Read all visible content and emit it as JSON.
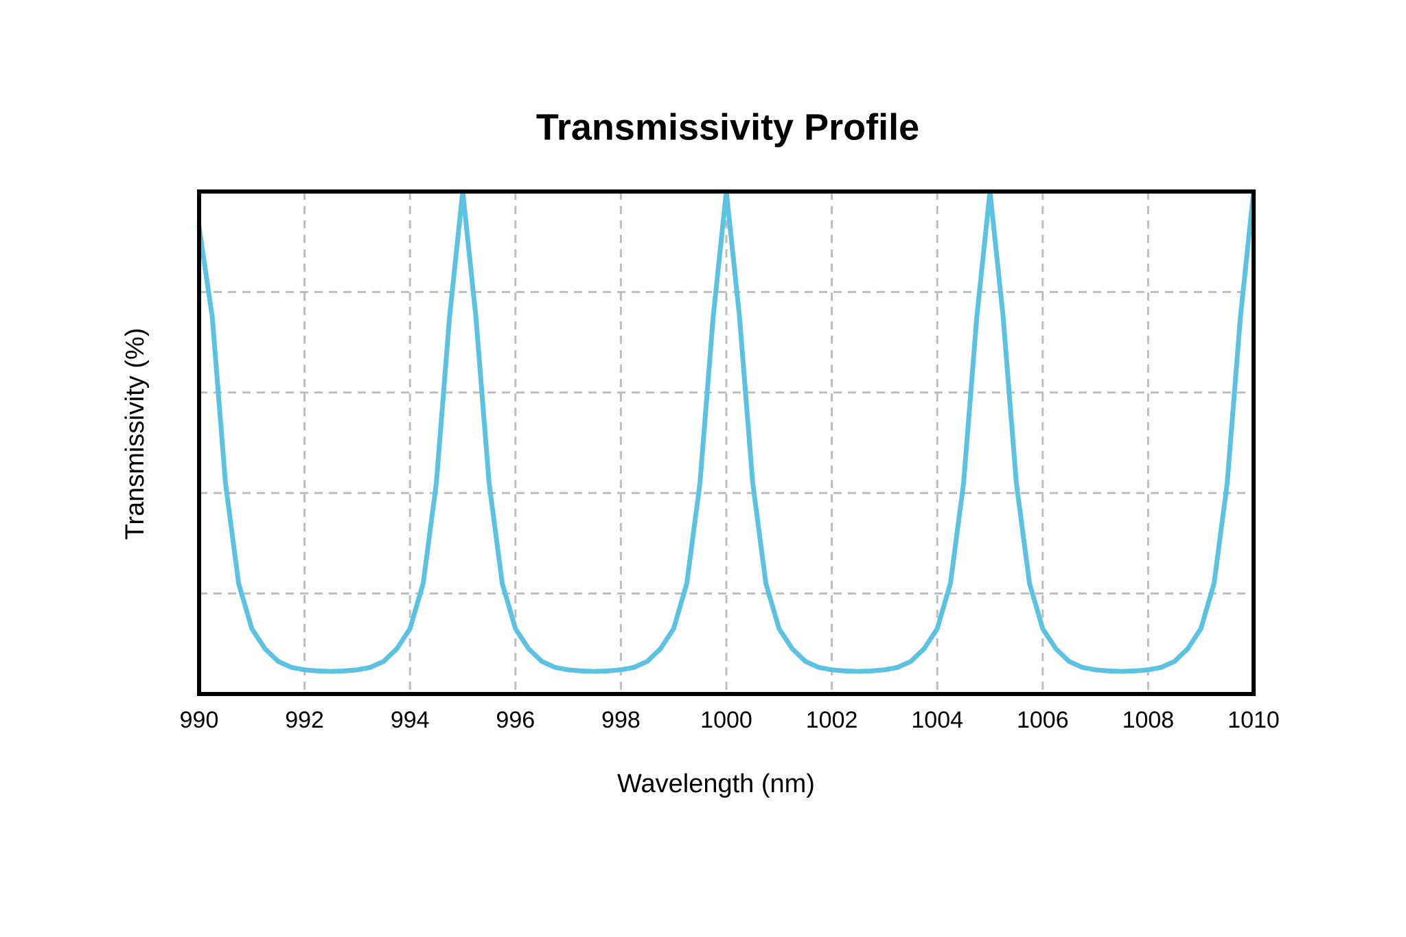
{
  "chart_data": {
    "type": "line",
    "title": "Transmissivity Profile",
    "x_label": "Wavelength (nm)",
    "y_label": "Transmissivity (%)",
    "x": [
      990,
      990.25,
      990.5,
      990.75,
      991,
      991.25,
      991.5,
      991.75,
      992,
      992.25,
      992.5,
      992.75,
      993,
      993.25,
      993.5,
      993.75,
      994,
      994.25,
      994.5,
      994.75,
      995,
      995.25,
      995.5,
      995.75,
      996,
      996.25,
      996.5,
      996.75,
      997,
      997.25,
      997.5,
      997.75,
      998,
      998.25,
      998.5,
      998.75,
      999,
      999.25,
      999.5,
      999.75,
      1000,
      1000.25,
      1000.5,
      1000.75,
      1001,
      1001.25,
      1001.5,
      1001.75,
      1002,
      1002.25,
      1002.5,
      1002.75,
      1003,
      1003.25,
      1003.5,
      1003.75,
      1004,
      1004.25,
      1004.5,
      1004.75,
      1005,
      1005.25,
      1005.5,
      1005.75,
      1006,
      1006.25,
      1006.5,
      1006.75,
      1007,
      1007.25,
      1007.5,
      1007.75,
      1008,
      1008.25,
      1008.5,
      1008.75,
      1009,
      1009.25,
      1009.5,
      1009.75,
      1010
    ],
    "values": [
      93,
      75,
      42,
      22,
      13,
      9,
      6.5,
      5.3,
      4.8,
      4.6,
      4.5,
      4.6,
      4.8,
      5.3,
      6.5,
      9,
      13,
      22,
      42,
      75,
      100,
      75,
      42,
      22,
      13,
      9,
      6.5,
      5.3,
      4.8,
      4.6,
      4.5,
      4.6,
      4.8,
      5.3,
      6.5,
      9,
      13,
      22,
      42,
      75,
      100,
      75,
      42,
      22,
      13,
      9,
      6.5,
      5.3,
      4.8,
      4.6,
      4.5,
      4.6,
      4.8,
      5.3,
      6.5,
      9,
      13,
      22,
      42,
      75,
      100,
      75,
      42,
      22,
      13,
      9,
      6.5,
      5.3,
      4.8,
      4.6,
      4.5,
      4.6,
      4.8,
      5.3,
      6.5,
      9,
      13,
      22,
      42,
      75,
      100
    ],
    "color": "#5bc3e1",
    "xlim": [
      990,
      1010
    ],
    "xticks": [
      990,
      992,
      994,
      996,
      998,
      1000,
      1002,
      1004,
      1006,
      1008,
      1010
    ],
    "ylim": [
      0,
      100
    ],
    "yticks": [
      20,
      40,
      60,
      80
    ],
    "ytick_labels": false,
    "grid": true
  }
}
